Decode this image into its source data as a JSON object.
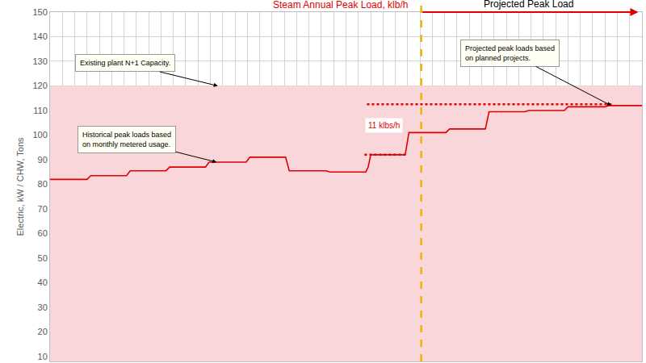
{
  "chart_data": {
    "type": "line",
    "title": "Steam Annual Peak Load, klb/h",
    "y_label": "Electric, kW / CHW, Tons",
    "x": [
      0,
      3.0,
      3.3,
      6.2,
      6.5,
      9.4,
      9.7,
      12.6,
      12.9,
      15.9,
      16.2,
      19.1,
      19.4,
      22.4,
      22.7,
      25.6,
      25.8,
      26.0,
      28.8,
      29.1,
      32.1,
      32.4,
      35.3,
      35.6,
      38.5,
      38.8,
      41.7,
      42.0,
      45.0,
      45.3,
      48
    ],
    "series": [
      {
        "color": "#e00000",
        "values": [
          82,
          82,
          83.5,
          83.5,
          85.5,
          85.5,
          87,
          87,
          89,
          89,
          91,
          91,
          85.5,
          85.5,
          85,
          85,
          87,
          92,
          92,
          101,
          101,
          102.5,
          102.5,
          109.5,
          109.5,
          110,
          110,
          111.5,
          111.5,
          112,
          112
        ]
      }
    ],
    "xlim": [
      0,
      48
    ],
    "xticks": [
      0,
      1,
      2,
      3,
      4,
      5,
      6,
      7,
      8,
      9,
      10,
      11,
      12,
      13,
      14,
      15,
      16,
      17,
      18,
      19,
      20,
      21,
      22,
      23,
      24,
      25,
      26,
      27,
      28,
      29,
      30,
      31,
      32,
      33,
      34,
      35,
      36,
      37,
      38,
      39,
      40,
      41,
      42,
      43,
      44,
      45,
      46,
      47,
      48
    ],
    "ylim": [
      8,
      150
    ],
    "yticks": [
      10,
      20,
      30,
      40,
      50,
      60,
      70,
      80,
      90,
      100,
      110,
      120,
      130,
      140,
      150
    ],
    "grid": true,
    "tick_labels": "y",
    "capacity": {
      "value": 120,
      "color": "#f9d6da",
      "label": "Existing plant N+1 Capacity.",
      "arrow_x": 13.6
    },
    "divider": {
      "x": 30.1,
      "color": "#f0b400",
      "label": "Projected Peak Load",
      "label_x": 38.8,
      "arrow_to": 47.7,
      "label_color": "#e00000"
    },
    "reference_lines": [
      {
        "y": 112.5,
        "x": [
          25.7,
          45.7
        ],
        "color": "#e00000"
      },
      {
        "y": 92,
        "x": [
          25.5,
          29.0
        ],
        "color": "#e00000"
      }
    ],
    "difference_label": {
      "text": "11 klbs/h",
      "x": 27.1,
      "y": 104,
      "color": "#e00000"
    },
    "notes": [
      {
        "lines": [
          "Historical peak loads based",
          "on monthly metered usage."
        ],
        "x": 13.5,
        "y": 89
      },
      {
        "lines": [
          "Projected peak loads based",
          "on planned projects."
        ],
        "x": 45.5,
        "y": 112
      }
    ]
  }
}
